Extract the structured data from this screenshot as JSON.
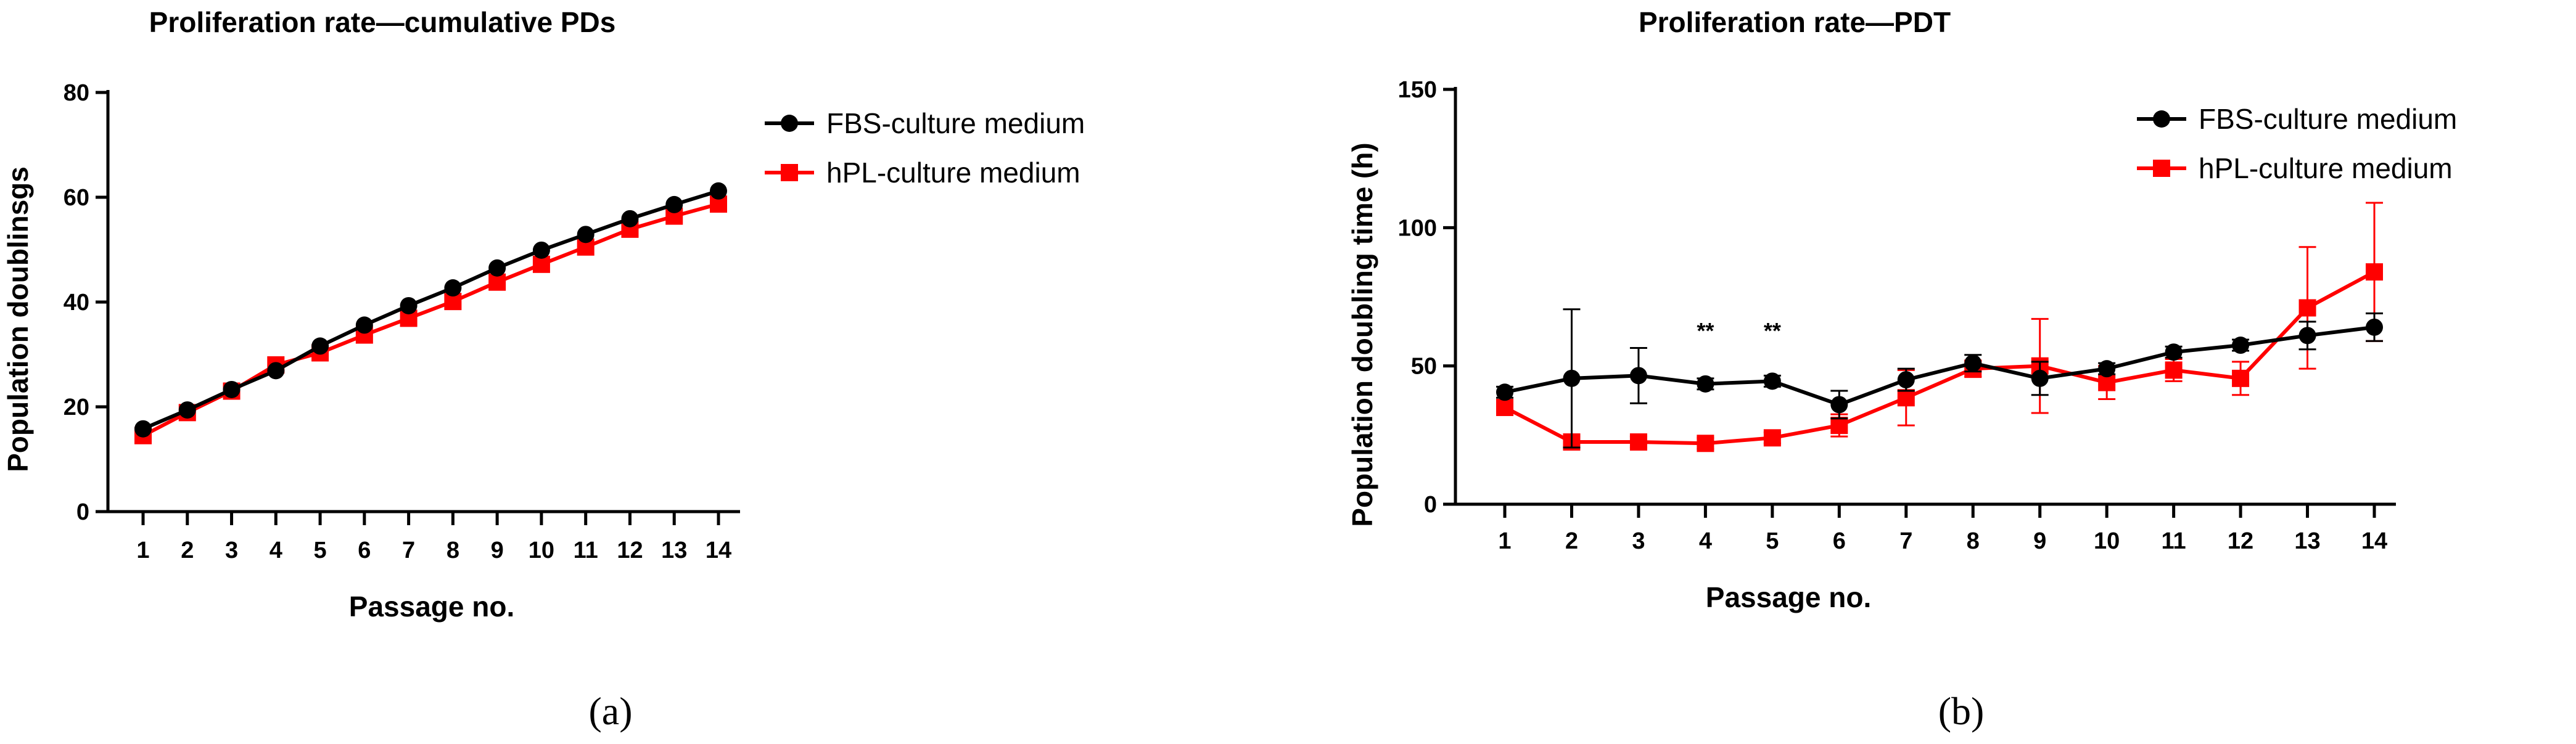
{
  "colors": {
    "fbs": "#000000",
    "hpl": "#ff0000"
  },
  "chart_data": [
    {
      "type": "line",
      "panel_label": "(a)",
      "title": "Proliferation rate—cumulative PDs",
      "xlabel": "Passage no.",
      "ylabel": "Population doublinsgs",
      "x": [
        1,
        2,
        3,
        4,
        5,
        6,
        7,
        8,
        9,
        10,
        11,
        12,
        13,
        14
      ],
      "ylim": [
        0,
        80
      ],
      "yticks": [
        0,
        20,
        40,
        60,
        80
      ],
      "legend_position": "right",
      "series": [
        {
          "name": "FBS-culture medium",
          "color": "#000000",
          "marker": "circle",
          "values": [
            15.8,
            19.4,
            23.3,
            26.9,
            31.6,
            35.6,
            39.3,
            42.7,
            46.5,
            49.9,
            52.9,
            55.9,
            58.6,
            61.2
          ]
        },
        {
          "name": "hPL-culture medium",
          "color": "#ff0000",
          "marker": "square",
          "values": [
            14.5,
            18.9,
            23.0,
            28.0,
            30.3,
            33.7,
            36.9,
            40.1,
            43.8,
            47.2,
            50.5,
            53.9,
            56.4,
            58.7
          ]
        }
      ],
      "annotations": []
    },
    {
      "type": "line",
      "panel_label": "(b)",
      "title": "Proliferation rate—PDT",
      "xlabel": "Passage no.",
      "ylabel": "Population doubling time (h)",
      "x": [
        1,
        2,
        3,
        4,
        5,
        6,
        7,
        8,
        9,
        10,
        11,
        12,
        13,
        14
      ],
      "ylim": [
        0,
        150
      ],
      "yticks": [
        0,
        50,
        100,
        150
      ],
      "legend_position": "right",
      "series": [
        {
          "name": "FBS-culture medium",
          "color": "#000000",
          "marker": "circle",
          "values": [
            40.5,
            45.5,
            46.5,
            43.5,
            44.5,
            36.0,
            45.0,
            51.0,
            45.5,
            49.0,
            55.0,
            57.5,
            61.0,
            64.0
          ],
          "errors": [
            2,
            25,
            10,
            2,
            2,
            5,
            4,
            3,
            6,
            2,
            2,
            2,
            5,
            5
          ]
        },
        {
          "name": "hPL-culture medium",
          "color": "#ff0000",
          "marker": "square",
          "values": [
            35.0,
            22.5,
            22.5,
            22.0,
            24.0,
            28.5,
            38.5,
            49.0,
            50.0,
            44.0,
            48.5,
            45.5,
            71.0,
            84.0
          ],
          "errors": [
            2,
            2,
            2,
            2,
            2,
            4,
            10,
            3,
            17,
            6,
            4,
            6,
            22,
            25
          ]
        }
      ],
      "annotations": [
        {
          "text": "**",
          "x": 4,
          "y": 60
        },
        {
          "text": "**",
          "x": 5,
          "y": 60
        }
      ]
    }
  ]
}
